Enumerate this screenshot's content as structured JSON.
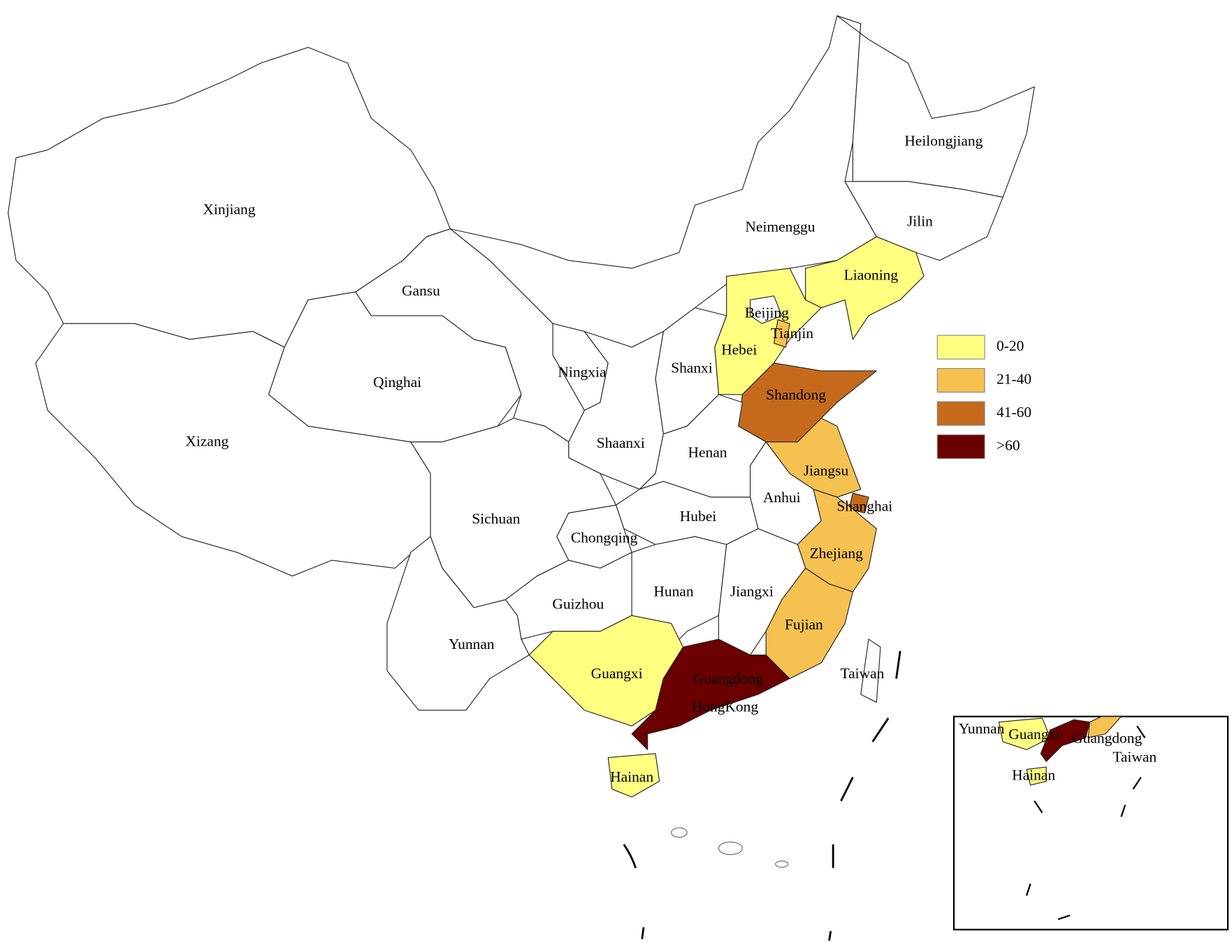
{
  "regions": [
    {
      "name": "Xinjiang",
      "color": "#ffffff"
    },
    {
      "name": "Xizang",
      "color": "#ffffff"
    },
    {
      "name": "Qinghai",
      "color": "#ffffff"
    },
    {
      "name": "Gansu",
      "color": "#ffffff"
    },
    {
      "name": "Neimenggu",
      "color": "#ffffff"
    },
    {
      "name": "Heilongjiang",
      "color": "#ffffff"
    },
    {
      "name": "Jilin",
      "color": "#ffffff"
    },
    {
      "name": "Liaoning",
      "color": "#ffff80"
    },
    {
      "name": "Hebei",
      "color": "#ffff80"
    },
    {
      "name": "Beijing",
      "color": "#ffffff"
    },
    {
      "name": "Tianjin",
      "color": "#f5c151"
    },
    {
      "name": "Shanxi",
      "color": "#ffffff"
    },
    {
      "name": "Shandong",
      "color": "#c56a1c"
    },
    {
      "name": "Ningxia",
      "color": "#ffffff"
    },
    {
      "name": "Shaanxi",
      "color": "#ffffff"
    },
    {
      "name": "Henan",
      "color": "#ffffff"
    },
    {
      "name": "Jiangsu",
      "color": "#f5c151"
    },
    {
      "name": "Shanghai",
      "color": "#c56a1c"
    },
    {
      "name": "Anhui",
      "color": "#ffffff"
    },
    {
      "name": "Zhejiang",
      "color": "#f5c151"
    },
    {
      "name": "Hubei",
      "color": "#ffffff"
    },
    {
      "name": "Chongqing",
      "color": "#ffffff"
    },
    {
      "name": "Sichuan",
      "color": "#ffffff"
    },
    {
      "name": "Guizhou",
      "color": "#ffffff"
    },
    {
      "name": "Hunan",
      "color": "#ffffff"
    },
    {
      "name": "Jiangxi",
      "color": "#ffffff"
    },
    {
      "name": "Fujian",
      "color": "#f5c151"
    },
    {
      "name": "Yunnan",
      "color": "#ffffff"
    },
    {
      "name": "Guangxi",
      "color": "#ffff80"
    },
    {
      "name": "Guangdong",
      "color": "#6b0000"
    },
    {
      "name": "Hainan",
      "color": "#ffff80"
    },
    {
      "name": "Taiwan",
      "color": "#ffffff"
    }
  ],
  "hong_kong_label": "HongKong",
  "legend": [
    {
      "label": "0-20",
      "color": "#ffff80"
    },
    {
      "label": "21-40",
      "color": "#f5c151"
    },
    {
      "label": "41-60",
      "color": "#c56a1c"
    },
    {
      "label": ">60",
      "color": "#6b0000"
    }
  ],
  "inset": {
    "labels": [
      "Yunnan",
      "Guangxi",
      "Guangdong",
      "Taiwan",
      "Hainan"
    ]
  }
}
